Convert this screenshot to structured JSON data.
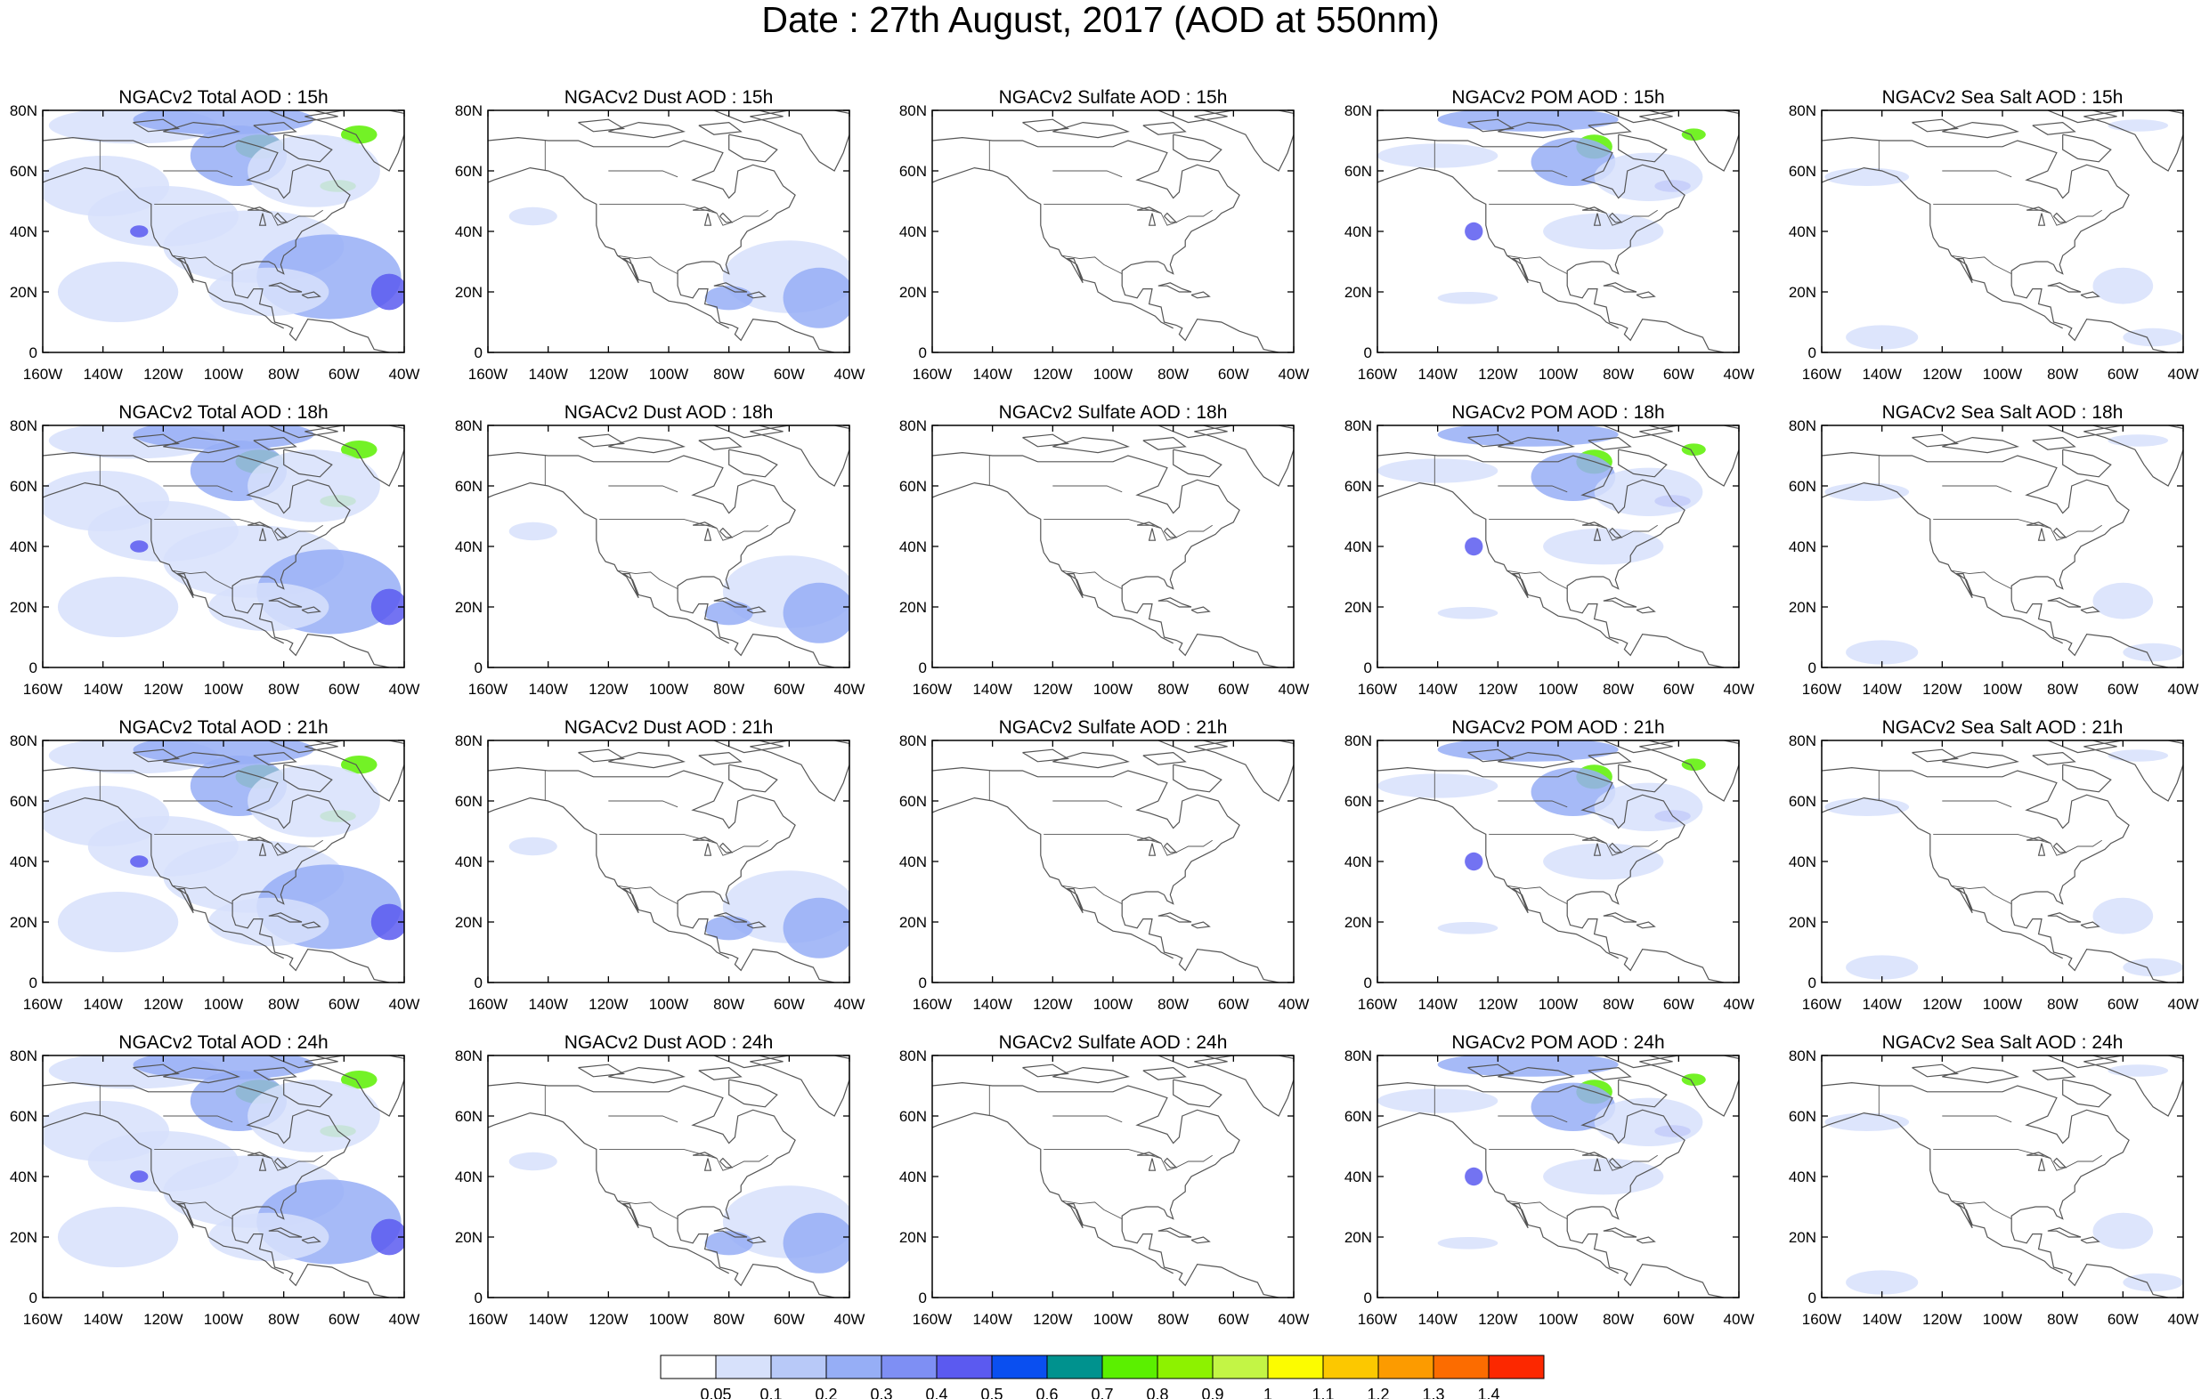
{
  "title": "Date : 27th August, 2017 (AOD at 550nm)",
  "panel_titles": [
    [
      "NGACv2 Total AOD : 15h",
      "NGACv2 Dust AOD : 15h",
      "NGACv2 Sulfate AOD : 15h",
      "NGACv2 POM AOD : 15h",
      "NGACv2 Sea Salt AOD : 15h"
    ],
    [
      "NGACv2 Total AOD : 18h",
      "NGACv2 Dust AOD : 18h",
      "NGACv2 Sulfate AOD : 18h",
      "NGACv2 POM AOD : 18h",
      "NGACv2 Sea Salt AOD : 18h"
    ],
    [
      "NGACv2 Total AOD : 21h",
      "NGACv2 Dust AOD : 21h",
      "NGACv2 Sulfate AOD : 21h",
      "NGACv2 POM AOD : 21h",
      "NGACv2 Sea Salt AOD : 21h"
    ],
    [
      "NGACv2 Total AOD : 24h",
      "NGACv2 Dust AOD : 24h",
      "NGACv2 Sulfate AOD : 24h",
      "NGACv2 POM AOD : 24h",
      "NGACv2 Sea Salt  AOD : 24h"
    ]
  ],
  "x_tick_labels": [
    "160W",
    "140W",
    "120W",
    "100W",
    "80W",
    "60W",
    "40W"
  ],
  "y_tick_labels": [
    "0",
    "20N",
    "40N",
    "60N",
    "80N"
  ],
  "colorbar": {
    "labels": [
      "0.05",
      "0.1",
      "0.2",
      "0.3",
      "0.4",
      "0.5",
      "0.6",
      "0.7",
      "0.8",
      "0.9",
      "1",
      "1.1",
      "1.2",
      "1.3",
      "1.4"
    ],
    "colors": [
      "#ffffff",
      "#d7e1fb",
      "#b8c9f8",
      "#96aef6",
      "#7e8ff4",
      "#5b5af0",
      "#0a4ff0",
      "#00928e",
      "#5bf000",
      "#8df200",
      "#c3f545",
      "#fcfc00",
      "#fcc800",
      "#fc9b00",
      "#fc6c00",
      "#fc2800"
    ]
  },
  "map_colors": {
    "coast": "#555555",
    "low": "#d7e1fb",
    "mid": "#96aef6",
    "high": "#5b5af0",
    "peak": "#5bf000"
  }
}
